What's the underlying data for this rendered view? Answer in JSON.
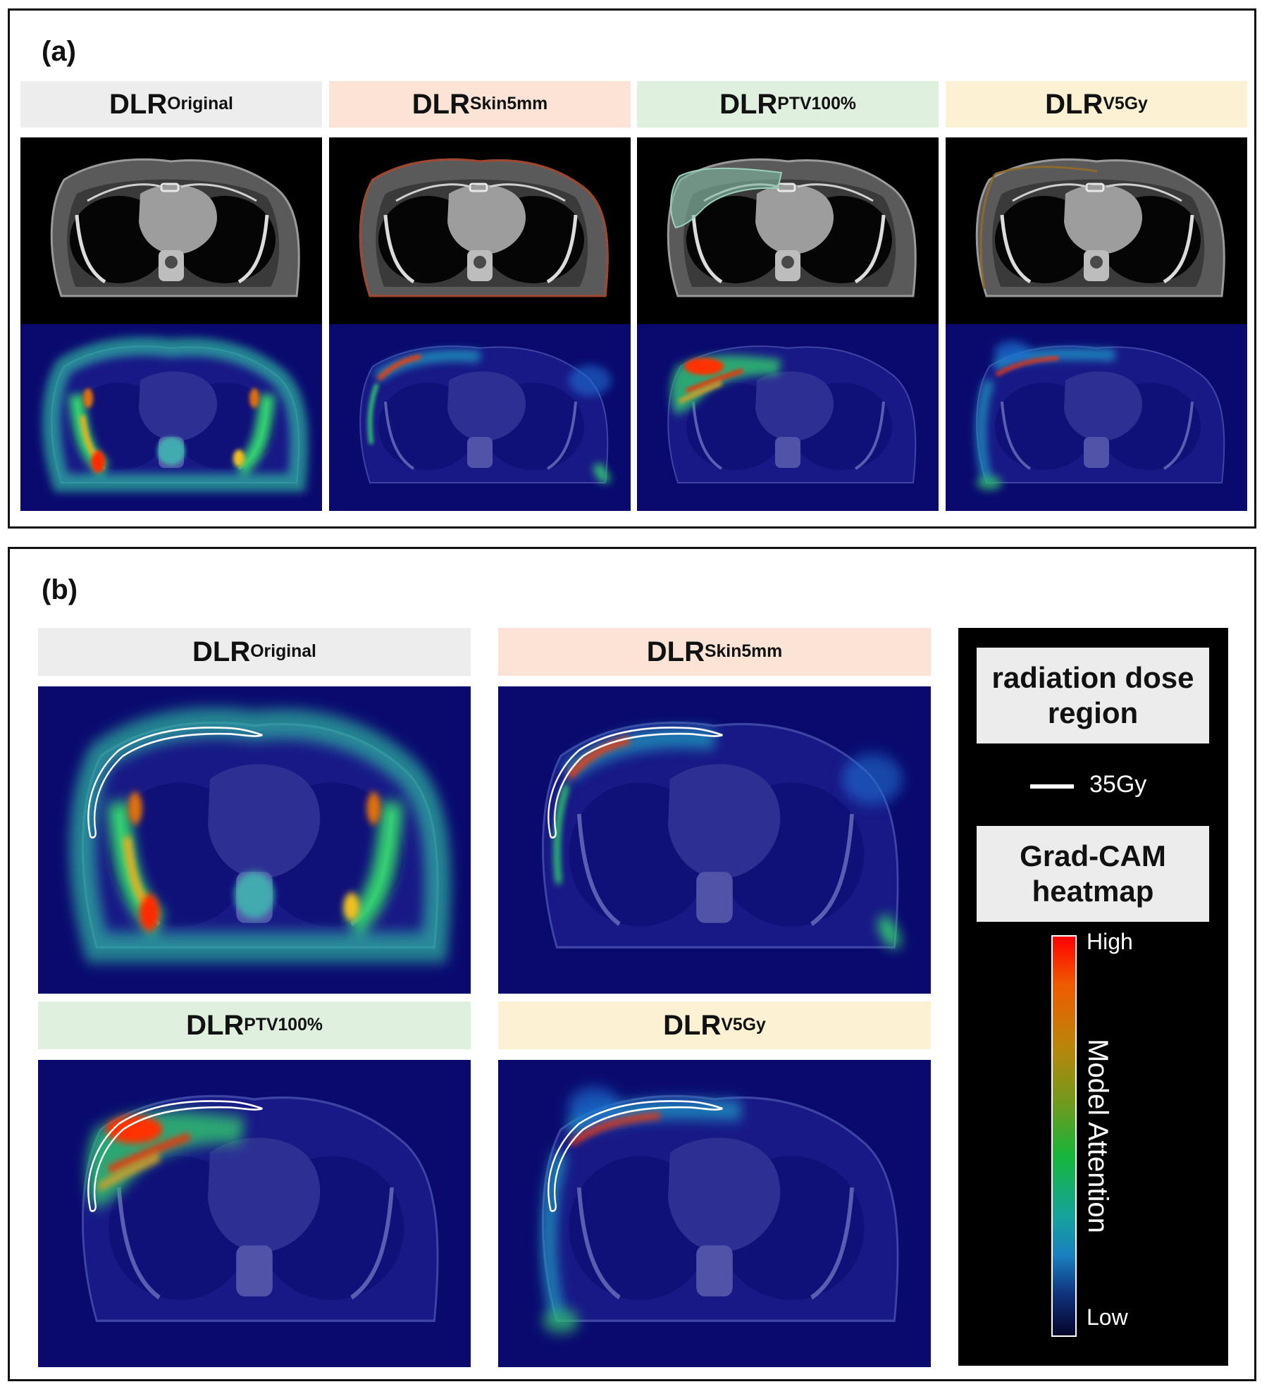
{
  "panel_a": {
    "label": "(a)",
    "columns": [
      {
        "name": "DLR",
        "sub": "Original",
        "bg": "#ededed"
      },
      {
        "name": "DLR",
        "sub": "Skin5mm",
        "bg": "#fbe4d6"
      },
      {
        "name": "DLR",
        "sub": "PTV100%",
        "bg": "#dff0df"
      },
      {
        "name": "DLR",
        "sub": "V5Gy",
        "bg": "#fdf1d3"
      }
    ]
  },
  "panel_b": {
    "label": "(b)",
    "cells": [
      {
        "name": "DLR",
        "sub": "Original"
      },
      {
        "name": "DLR",
        "sub": "Skin5mm"
      },
      {
        "name": "DLR",
        "sub": "PTV100%"
      },
      {
        "name": "DLR",
        "sub": "V5Gy"
      }
    ]
  },
  "legend": {
    "dose_title": "radiation dose region",
    "dose_line_label": "35Gy",
    "gradcam_title": "Grad-CAM heatmap",
    "high": "High",
    "low": "Low",
    "axis": "Model Attention"
  },
  "colors": {
    "heatmap_low": "#0a0a6e",
    "heatmap_high": "#ff0000",
    "skin_contour": "#a0452e",
    "ptv_fill": "#7fb9a4",
    "v5gy_contour": "#8a6a2e"
  }
}
